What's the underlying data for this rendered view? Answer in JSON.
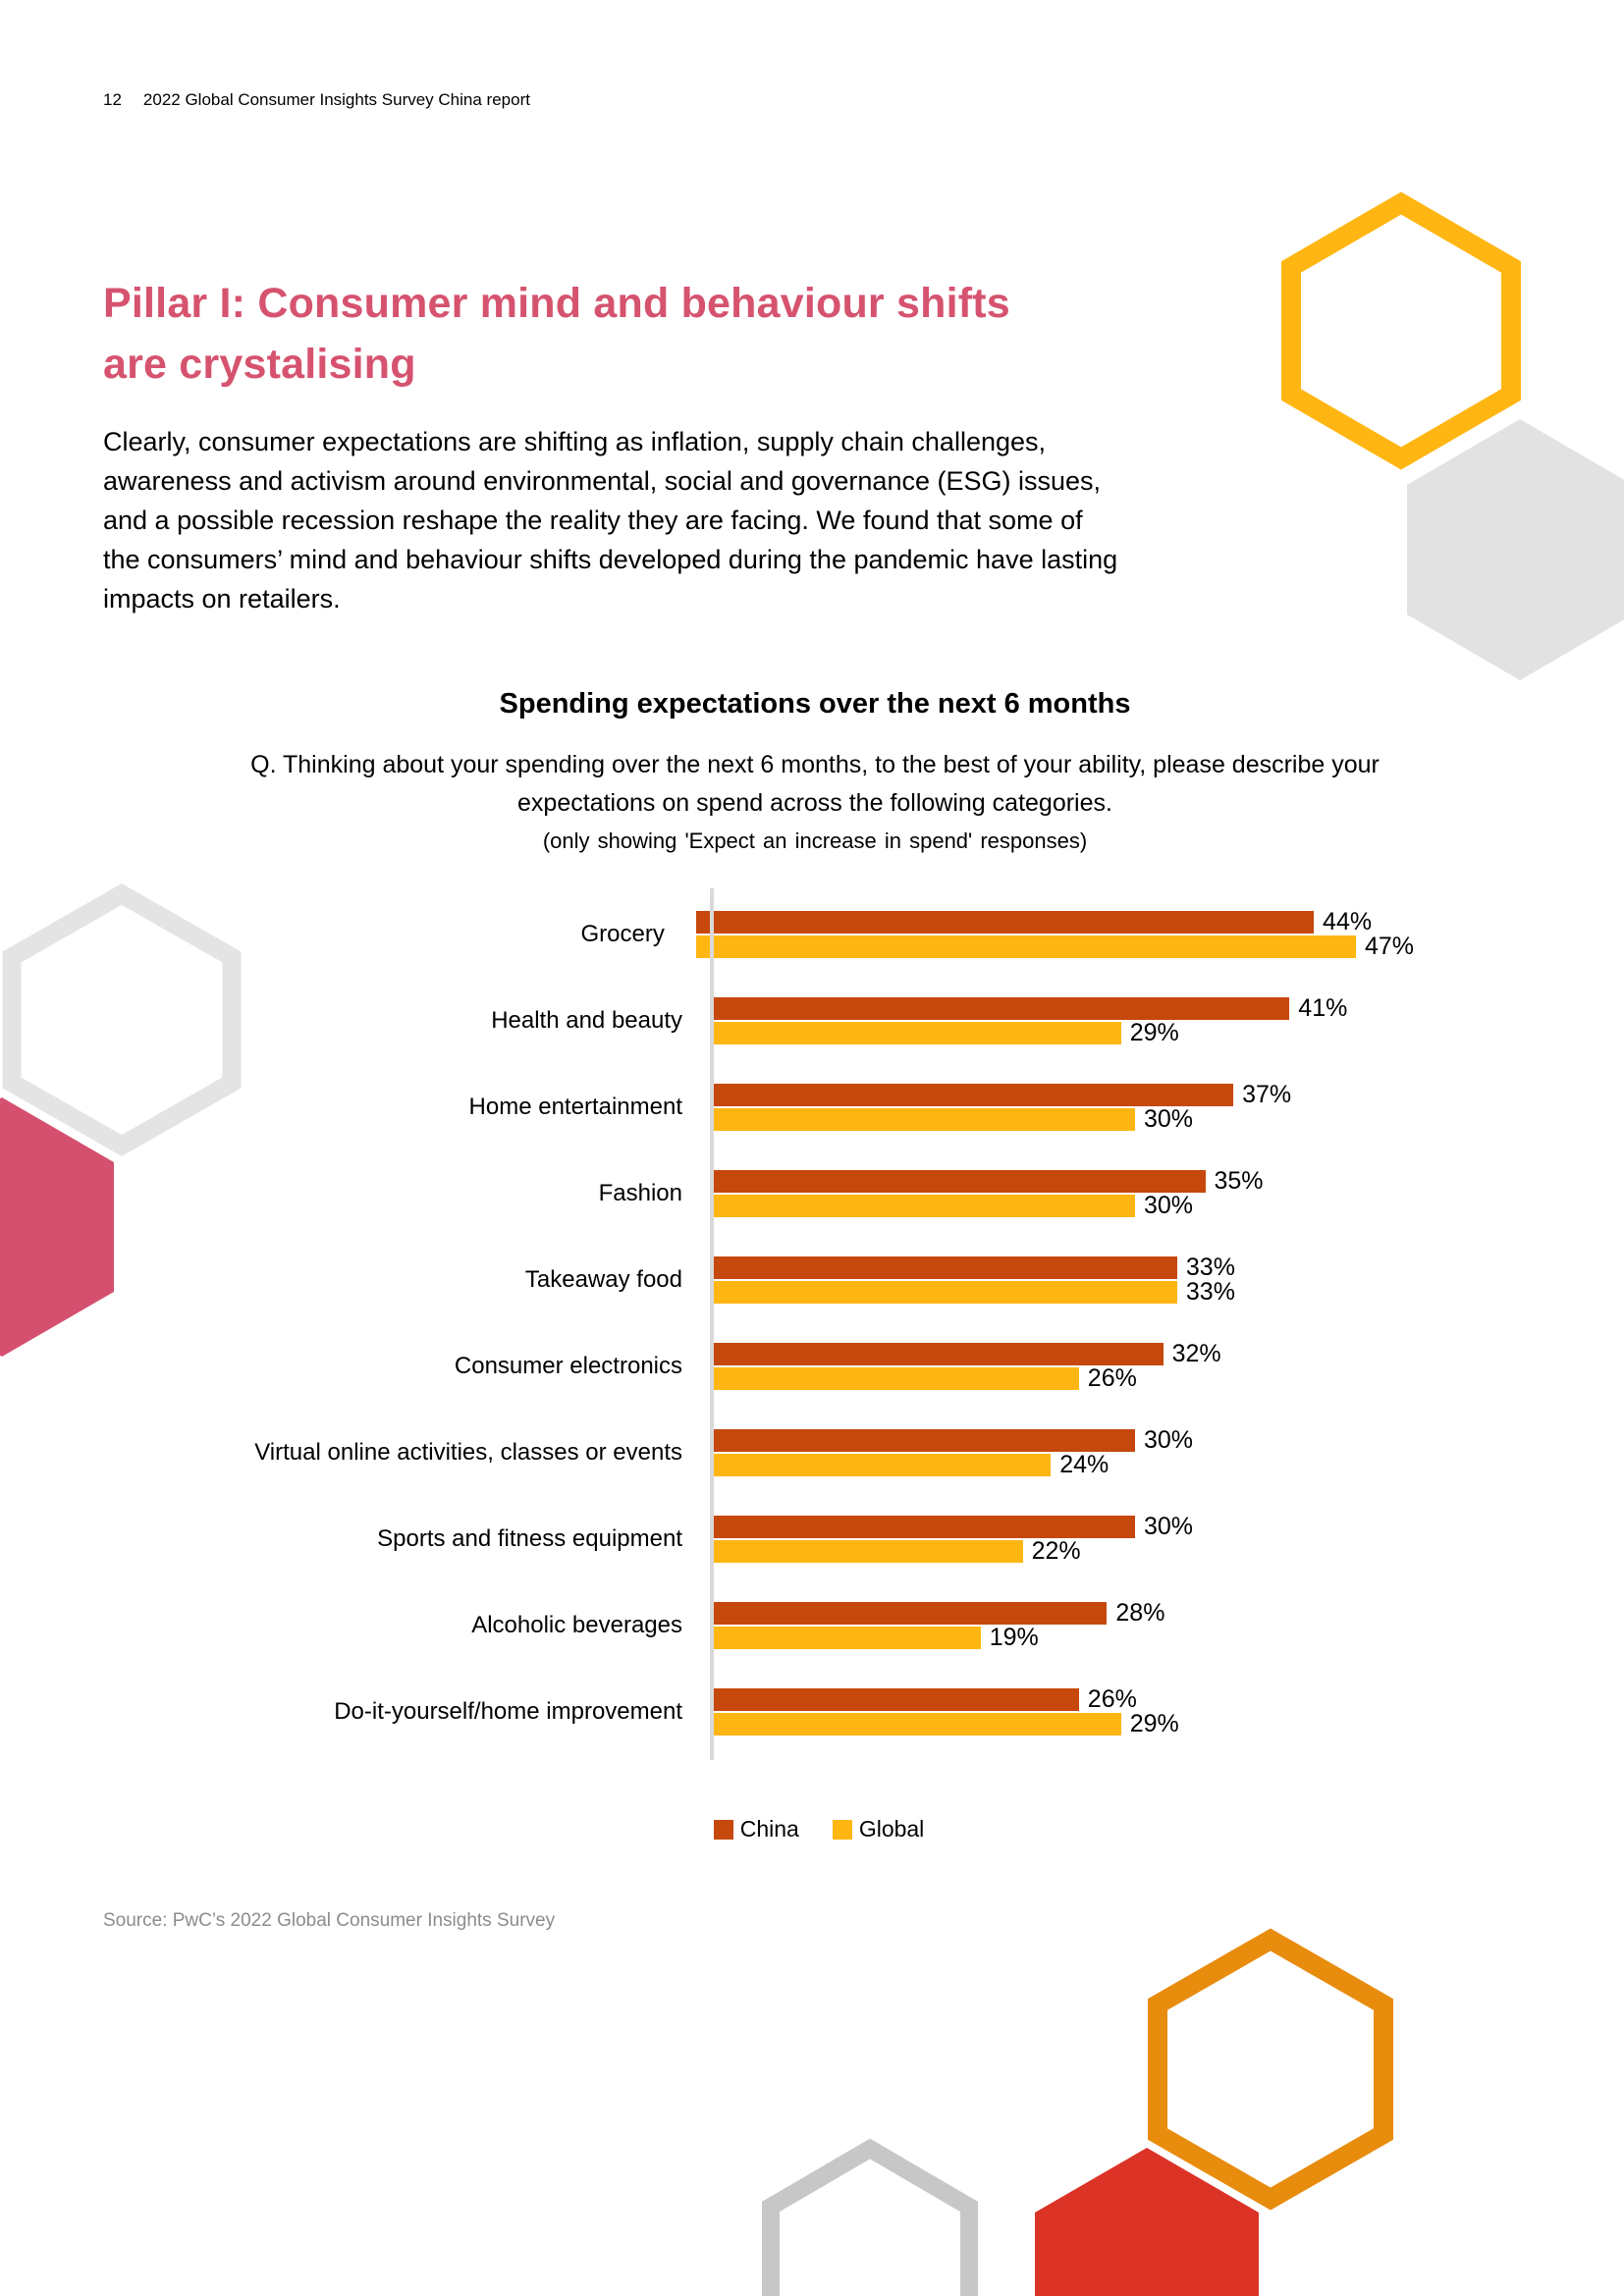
{
  "page": {
    "header": {
      "page_number": "12",
      "report_title": "2022 Global Consumer Insights Survey China report"
    },
    "pillar_title": "Pillar I: Consumer mind and behaviour shifts are crystalising",
    "intro_paragraph": "Clearly, consumer expectations are shifting as inflation, supply chain challenges, awareness and activism around environmental, social and governance (ESG) issues, and a possible recession reshape the reality they are facing. We found that some of the consumers’ mind and behaviour shifts developed during the pandemic have lasting impacts on retailers.",
    "source_note": "Source: PwC’s 2022 Global Consumer Insights Survey"
  },
  "chart_data": {
    "type": "bar",
    "orientation": "horizontal",
    "title": "Spending expectations over the next 6 months",
    "question": "Q. Thinking about your spending over the next 6 months, to the best of your ability, please describe your expectations on spend across the following categories.",
    "note": "(only showing 'Expect an increase in spend' responses)",
    "categories": [
      "Grocery",
      "Health and beauty",
      "Home entertainment",
      "Fashion",
      "Takeaway food",
      "Consumer electronics",
      "Virtual online activities, classes or events",
      "Sports and fitness equipment",
      "Alcoholic beverages",
      "Do-it-yourself/home improvement"
    ],
    "series": [
      {
        "name": "China",
        "color": "#C6480D",
        "values": [
          44,
          41,
          37,
          35,
          33,
          32,
          30,
          30,
          28,
          26
        ]
      },
      {
        "name": "Global",
        "color": "#FFB612",
        "values": [
          47,
          29,
          30,
          30,
          33,
          26,
          24,
          22,
          19,
          29
        ]
      }
    ],
    "value_suffix": "%",
    "xlim": [
      0,
      50
    ],
    "grid": false,
    "legend_position": "bottom"
  },
  "theme": {
    "title_color": "#D6536F",
    "axis_line_color": "#D9D9D9",
    "decor_colors": {
      "yellow": "#FFB612",
      "orange": "#E88C0E",
      "red": "#DC3327",
      "pink": "#D4506E",
      "gray_fill": "#E2E2E2",
      "gray_outline_light": "#E4E4E4",
      "gray_outline_dark": "#C7C7C7"
    }
  }
}
